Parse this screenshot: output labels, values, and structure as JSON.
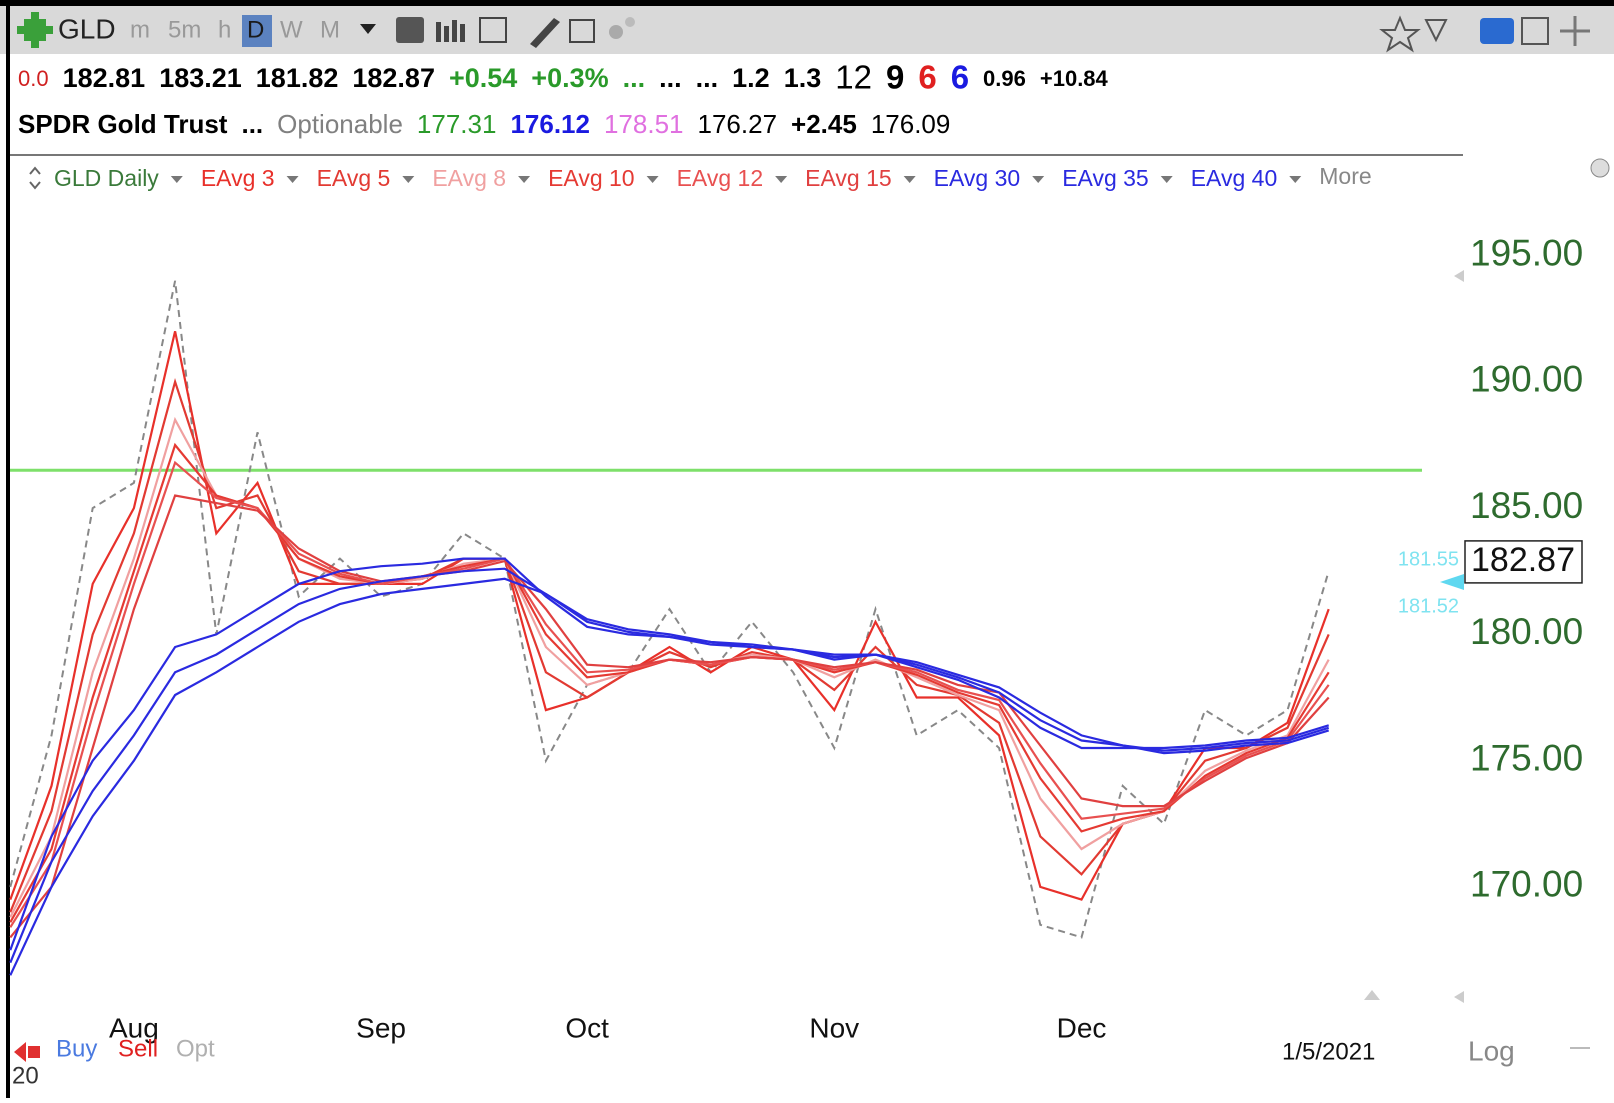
{
  "toolbar": {
    "symbol": "GLD",
    "intervals": [
      "m",
      "5m",
      "h",
      "D",
      "W",
      "M"
    ]
  },
  "quote_row1": [
    {
      "text": "0.0",
      "color": "#d02020",
      "bold": false
    },
    {
      "text": "182.81",
      "color": "#000000",
      "bold": true
    },
    {
      "text": "183.21",
      "color": "#000000",
      "bold": true
    },
    {
      "text": "181.82",
      "color": "#000000",
      "bold": true
    },
    {
      "text": "182.87",
      "color": "#000000",
      "bold": true
    },
    {
      "text": "+0.54",
      "color": "#2a9a2a",
      "bold": true
    },
    {
      "text": "+0.3%",
      "color": "#2a9a2a",
      "bold": true
    },
    {
      "text": "...",
      "color": "#2a9a2a",
      "bold": true
    },
    {
      "text": "...",
      "color": "#000000",
      "bold": true
    },
    {
      "text": "...",
      "color": "#000000",
      "bold": true
    },
    {
      "text": "1.2",
      "color": "#000000",
      "bold": true
    },
    {
      "text": "1.3",
      "color": "#000000",
      "bold": true
    },
    {
      "text": "12",
      "color": "#000000",
      "bold": false
    },
    {
      "text": "9",
      "color": "#000000",
      "bold": true
    },
    {
      "text": "6",
      "color": "#e02020",
      "bold": true
    },
    {
      "text": "6",
      "color": "#1a1ae0",
      "bold": true
    },
    {
      "text": "0.96",
      "color": "#000000",
      "bold": true
    },
    {
      "text": "+10.84",
      "color": "#000000",
      "bold": true
    }
  ],
  "quote_row2": [
    {
      "text": "SPDR Gold Trust",
      "color": "#000000",
      "bold": true
    },
    {
      "text": "...",
      "color": "#000000",
      "bold": true
    },
    {
      "text": "Optionable",
      "color": "#808080",
      "bold": false
    },
    {
      "text": "177.31",
      "color": "#2a9a2a",
      "bold": false
    },
    {
      "text": "176.12",
      "color": "#1a1ae0",
      "bold": true
    },
    {
      "text": "178.51",
      "color": "#e070e0",
      "bold": false
    },
    {
      "text": "176.27",
      "color": "#000000",
      "bold": false
    },
    {
      "text": "+2.45",
      "color": "#000000",
      "bold": true
    },
    {
      "text": "176.09",
      "color": "#000000",
      "bold": false
    }
  ],
  "chart_data": {
    "type": "line",
    "more": "More",
    "categories": [
      null,
      null,
      null,
      "Aug",
      null,
      null,
      null,
      null,
      null,
      "Sep",
      null,
      null,
      null,
      null,
      "Oct",
      null,
      null,
      null,
      null,
      null,
      "Nov",
      null,
      null,
      null,
      null,
      null,
      "Dec",
      null,
      null,
      null,
      null,
      null,
      "1/5/2021"
    ],
    "ylim": [
      165.8,
      197.2
    ],
    "yticks": [
      {
        "value": 170,
        "label": "170.00"
      },
      {
        "value": 175,
        "label": "175.00"
      },
      {
        "value": 180,
        "label": "180.00"
      },
      {
        "value": 185,
        "label": "185.00"
      },
      {
        "value": 190,
        "label": "190.00"
      },
      {
        "value": 195,
        "label": "195.00"
      }
    ],
    "hline": {
      "value": 186.5,
      "color": "#7ee06a"
    },
    "last_price": {
      "value": 182.87,
      "label": "182.87"
    },
    "side_labels": [
      "181.55",
      "181.52"
    ],
    "signals": [
      {
        "text": "Buy",
        "color": "#4a7ae0"
      },
      {
        "text": "Sell",
        "color": "#e02020"
      },
      {
        "text": "Opt",
        "color": "#b0b0b0"
      }
    ],
    "scale_label": "Log",
    "corner_label": "20",
    "series": [
      {
        "name": "GLD Daily",
        "color": "#888888",
        "dashed": true,
        "values": [
          170,
          176,
          185,
          186,
          194,
          180,
          188,
          181.5,
          183,
          181.5,
          182,
          184,
          183,
          175,
          178,
          178.5,
          181,
          178.5,
          180.5,
          178.5,
          175.5,
          181,
          176,
          177,
          175.5,
          168.5,
          168,
          174,
          172.5,
          177,
          176,
          177,
          182.5
        ]
      },
      {
        "name": "EAvg 3",
        "color": "#e8302a",
        "dashed": false,
        "values": [
          169.5,
          174,
          182,
          185,
          192,
          184,
          186,
          182,
          182,
          182,
          182,
          183,
          183,
          177,
          177.5,
          178.5,
          179.5,
          178.5,
          179.5,
          179,
          177,
          180.5,
          177.5,
          177.5,
          176,
          170,
          169.5,
          172.5,
          173,
          175.5,
          175.5,
          176.5,
          181
        ]
      },
      {
        "name": "EAvg 5",
        "color": "#e23a32",
        "dashed": false,
        "values": [
          169,
          173,
          180,
          184,
          190,
          185,
          185.5,
          182.5,
          182,
          182,
          182.2,
          183,
          183,
          178.5,
          177.5,
          178.5,
          179.3,
          178.7,
          179.3,
          179,
          177.8,
          179.5,
          178,
          177.6,
          176.5,
          172,
          170.5,
          172.5,
          173,
          175,
          175.5,
          176.3,
          180
        ]
      },
      {
        "name": "EAvg 8",
        "color": "#f0a0a0",
        "dashed": false,
        "values": [
          168.8,
          172,
          178.5,
          183,
          188.5,
          185.5,
          185,
          183,
          182.2,
          182,
          182.2,
          182.8,
          183,
          179.5,
          178,
          178.5,
          179,
          178.8,
          179.2,
          179,
          178.3,
          179,
          178.3,
          177.6,
          177,
          173.5,
          171.5,
          172.5,
          173,
          174.6,
          175.4,
          176,
          179
        ]
      },
      {
        "name": "EAvg 10",
        "color": "#e53a33",
        "dashed": false,
        "values": [
          168.6,
          171.5,
          177.5,
          182.5,
          187.5,
          185.5,
          185,
          183,
          182.3,
          182,
          182.3,
          182.7,
          183,
          180,
          178.3,
          178.5,
          179,
          178.8,
          179.1,
          179,
          178.5,
          178.9,
          178.4,
          177.7,
          177.2,
          174.3,
          172.2,
          172.7,
          173,
          174.4,
          175.3,
          175.9,
          178.5
        ]
      },
      {
        "name": "EAvg 12",
        "color": "#e85050",
        "dashed": false,
        "values": [
          168.4,
          171,
          176.8,
          182,
          186.8,
          185.4,
          185,
          183.2,
          182.4,
          182,
          182.3,
          182.6,
          183,
          180.4,
          178.5,
          178.6,
          179,
          178.8,
          179.1,
          179,
          178.6,
          178.9,
          178.5,
          177.8,
          177.4,
          174.9,
          172.7,
          172.9,
          173.1,
          174.3,
          175.2,
          175.8,
          178
        ]
      },
      {
        "name": "EAvg 15",
        "color": "#e04040",
        "dashed": false,
        "values": [
          168,
          170,
          175.5,
          181,
          185.5,
          185.2,
          184.9,
          183.4,
          182.5,
          182.1,
          182.3,
          182.5,
          182.9,
          181,
          178.8,
          178.7,
          179,
          178.9,
          179.1,
          179,
          178.7,
          178.9,
          178.6,
          178,
          177.7,
          175.6,
          173.5,
          173.2,
          173.2,
          174.2,
          175.1,
          175.7,
          177.5
        ]
      },
      {
        "name": "EAvg 30",
        "color": "#2a2ae0",
        "dashed": false,
        "values": [
          167.5,
          172,
          175,
          177,
          179.5,
          180,
          181,
          182,
          182.5,
          182.7,
          182.8,
          183,
          183,
          181.5,
          180.3,
          180,
          179.9,
          179.6,
          179.5,
          179.4,
          179,
          179.2,
          178.7,
          178.2,
          177.5,
          176.3,
          175.5,
          175.5,
          175.5,
          175.6,
          175.8,
          175.9,
          176.4
        ]
      },
      {
        "name": "EAvg 35",
        "color": "#2a2ae0",
        "dashed": false,
        "values": [
          167,
          171,
          173.8,
          176,
          178.5,
          179.2,
          180.2,
          181.2,
          181.8,
          182.1,
          182.3,
          182.5,
          182.6,
          181.6,
          180.5,
          180.1,
          179.9,
          179.7,
          179.5,
          179.4,
          179.1,
          179.2,
          178.8,
          178.3,
          177.7,
          176.6,
          175.8,
          175.6,
          175.4,
          175.5,
          175.7,
          175.8,
          176.3
        ]
      },
      {
        "name": "EAvg 40",
        "color": "#2a2ae0",
        "dashed": false,
        "values": [
          166.5,
          170,
          172.8,
          175,
          177.6,
          178.5,
          179.5,
          180.5,
          181.2,
          181.6,
          181.8,
          182,
          182.2,
          181.6,
          180.6,
          180.2,
          180,
          179.7,
          179.6,
          179.4,
          179.2,
          179.2,
          178.9,
          178.4,
          177.9,
          176.9,
          176,
          175.6,
          175.3,
          175.4,
          175.6,
          175.7,
          176.2
        ]
      }
    ]
  }
}
